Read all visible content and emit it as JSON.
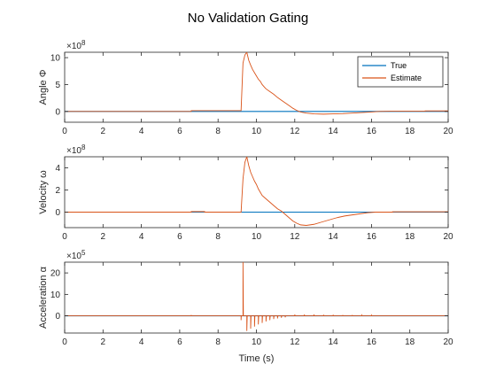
{
  "figure_title": "No Validation Gating",
  "colors": {
    "true": "#0072BD",
    "estimate": "#D95319",
    "axis": "#262626"
  },
  "chart_data": [
    {
      "type": "line",
      "ylabel": "Angle Φ",
      "exponent_base": "×10",
      "exponent_power": "8",
      "xlim": [
        0,
        20
      ],
      "ylim": [
        -2,
        11
      ],
      "x_ticks": [
        "0",
        "2",
        "4",
        "6",
        "8",
        "10",
        "12",
        "14",
        "16",
        "18",
        "20"
      ],
      "y_ticks": [
        {
          "value": 0,
          "label": "0"
        },
        {
          "value": 5,
          "label": "5"
        },
        {
          "value": 10,
          "label": "10"
        }
      ],
      "legend": {
        "position": "top-right",
        "entries": [
          "True",
          "Estimate"
        ]
      },
      "series": [
        {
          "name": "True",
          "color": "#0072BD",
          "points": [
            [
              0,
              0
            ],
            [
              20,
              0
            ]
          ]
        },
        {
          "name": "Estimate",
          "color": "#D95319",
          "points": [
            [
              0,
              0
            ],
            [
              6.6,
              0
            ],
            [
              6.6,
              0.15
            ],
            [
              8.8,
              0.15
            ],
            [
              9.2,
              0.15
            ],
            [
              9.3,
              9.0
            ],
            [
              9.4,
              10.5
            ],
            [
              9.5,
              11
            ],
            [
              9.6,
              9.5
            ],
            [
              9.7,
              8.6
            ],
            [
              9.8,
              7.8
            ],
            [
              9.9,
              7.2
            ],
            [
              10.0,
              6.6
            ],
            [
              10.1,
              6.0
            ],
            [
              10.2,
              5.6
            ],
            [
              10.3,
              5.0
            ],
            [
              10.4,
              4.6
            ],
            [
              10.5,
              4.2
            ],
            [
              10.7,
              3.7
            ],
            [
              10.9,
              3.2
            ],
            [
              11.1,
              2.6
            ],
            [
              11.3,
              2.1
            ],
            [
              11.5,
              1.6
            ],
            [
              11.7,
              1.1
            ],
            [
              11.9,
              0.6
            ],
            [
              12.1,
              0.2
            ],
            [
              12.3,
              -0.1
            ],
            [
              12.6,
              -0.3
            ],
            [
              13.0,
              -0.45
            ],
            [
              13.5,
              -0.5
            ],
            [
              14.0,
              -0.45
            ],
            [
              14.5,
              -0.4
            ],
            [
              15.0,
              -0.3
            ],
            [
              15.5,
              -0.2
            ],
            [
              16.0,
              -0.1
            ],
            [
              16.4,
              0
            ],
            [
              17.0,
              0.05
            ],
            [
              18.8,
              0.05
            ],
            [
              18.8,
              0.1
            ],
            [
              20,
              0.1
            ]
          ]
        }
      ]
    },
    {
      "type": "line",
      "ylabel": "Velocity ω",
      "exponent_base": "×10",
      "exponent_power": "8",
      "xlim": [
        0,
        20
      ],
      "ylim": [
        -1.4,
        5
      ],
      "x_ticks": [
        "0",
        "2",
        "4",
        "6",
        "8",
        "10",
        "12",
        "14",
        "16",
        "18",
        "20"
      ],
      "y_ticks": [
        {
          "value": 0,
          "label": "0"
        },
        {
          "value": 2,
          "label": "2"
        },
        {
          "value": 4,
          "label": "4"
        }
      ],
      "series": [
        {
          "name": "True",
          "color": "#0072BD",
          "points": [
            [
              0,
              0
            ],
            [
              20,
              0
            ]
          ]
        },
        {
          "name": "Estimate",
          "color": "#D95319",
          "points": [
            [
              0,
              0
            ],
            [
              6.6,
              0
            ],
            [
              6.6,
              0.05
            ],
            [
              7.3,
              0.05
            ],
            [
              7.3,
              0
            ],
            [
              9.0,
              0
            ],
            [
              9.2,
              0
            ],
            [
              9.3,
              3.0
            ],
            [
              9.4,
              4.5
            ],
            [
              9.5,
              5
            ],
            [
              9.6,
              4.2
            ],
            [
              9.7,
              3.6
            ],
            [
              9.8,
              3.2
            ],
            [
              9.9,
              2.8
            ],
            [
              10.0,
              2.5
            ],
            [
              10.1,
              2.1
            ],
            [
              10.2,
              1.8
            ],
            [
              10.3,
              1.5
            ],
            [
              10.5,
              1.2
            ],
            [
              10.7,
              0.9
            ],
            [
              10.9,
              0.6
            ],
            [
              11.1,
              0.3
            ],
            [
              11.3,
              0.1
            ],
            [
              11.5,
              -0.2
            ],
            [
              11.7,
              -0.5
            ],
            [
              11.9,
              -0.8
            ],
            [
              12.1,
              -1.0
            ],
            [
              12.3,
              -1.15
            ],
            [
              12.6,
              -1.2
            ],
            [
              13.0,
              -1.1
            ],
            [
              13.4,
              -0.9
            ],
            [
              13.8,
              -0.7
            ],
            [
              14.2,
              -0.5
            ],
            [
              14.6,
              -0.35
            ],
            [
              15.0,
              -0.25
            ],
            [
              15.4,
              -0.15
            ],
            [
              15.8,
              -0.05
            ],
            [
              16.2,
              0
            ],
            [
              17.1,
              0
            ],
            [
              17.1,
              0.03
            ],
            [
              20,
              0.03
            ]
          ]
        }
      ]
    },
    {
      "type": "line",
      "ylabel": "Acceleration α",
      "exponent_base": "×10",
      "exponent_power": "5",
      "xlim": [
        0,
        20
      ],
      "ylim": [
        -8,
        25
      ],
      "x_ticks": [
        "0",
        "2",
        "4",
        "6",
        "8",
        "10",
        "12",
        "14",
        "16",
        "18",
        "20"
      ],
      "xlabel": "Time (s)",
      "y_ticks": [
        {
          "value": 0,
          "label": "0"
        },
        {
          "value": 10,
          "label": "10"
        },
        {
          "value": 20,
          "label": "20"
        }
      ],
      "series": [
        {
          "name": "True",
          "color": "#0072BD",
          "points": [
            [
              0,
              0
            ],
            [
              20,
              0
            ]
          ]
        },
        {
          "name": "Estimate",
          "color": "#D95319",
          "points": [
            [
              0,
              0
            ],
            [
              6.6,
              0
            ],
            [
              6.6,
              0.4
            ],
            [
              6.61,
              0
            ],
            [
              9.2,
              0
            ],
            [
              9.2,
              -2
            ],
            [
              9.21,
              0
            ],
            [
              9.3,
              0
            ],
            [
              9.3,
              25
            ],
            [
              9.32,
              0
            ],
            [
              9.5,
              0
            ],
            [
              9.5,
              -7
            ],
            [
              9.52,
              0
            ],
            [
              9.7,
              0
            ],
            [
              9.7,
              -6
            ],
            [
              9.72,
              0
            ],
            [
              9.9,
              0
            ],
            [
              9.9,
              -5
            ],
            [
              9.92,
              0
            ],
            [
              10.1,
              0
            ],
            [
              10.1,
              -4
            ],
            [
              10.12,
              0
            ],
            [
              10.3,
              0
            ],
            [
              10.3,
              -3.3
            ],
            [
              10.32,
              0
            ],
            [
              10.5,
              0
            ],
            [
              10.5,
              -2.6
            ],
            [
              10.52,
              0
            ],
            [
              10.7,
              0
            ],
            [
              10.7,
              -2
            ],
            [
              10.72,
              0
            ],
            [
              10.9,
              0
            ],
            [
              10.9,
              -1.5
            ],
            [
              10.92,
              0
            ],
            [
              11.1,
              0
            ],
            [
              11.1,
              -1.2
            ],
            [
              11.12,
              0
            ],
            [
              11.3,
              0
            ],
            [
              11.3,
              -0.9
            ],
            [
              11.32,
              0
            ],
            [
              11.5,
              0
            ],
            [
              11.5,
              -0.7
            ],
            [
              11.52,
              0
            ],
            [
              12.0,
              0
            ],
            [
              12.0,
              0.6
            ],
            [
              12.02,
              0
            ],
            [
              12.5,
              0
            ],
            [
              12.5,
              0.6
            ],
            [
              12.52,
              0
            ],
            [
              13.0,
              0
            ],
            [
              13.0,
              0.6
            ],
            [
              13.02,
              0
            ],
            [
              13.5,
              0
            ],
            [
              13.5,
              0.5
            ],
            [
              13.52,
              0
            ],
            [
              14.0,
              0
            ],
            [
              14.0,
              0.5
            ],
            [
              14.02,
              0
            ],
            [
              14.5,
              0
            ],
            [
              14.5,
              0.4
            ],
            [
              14.52,
              0
            ],
            [
              15.0,
              0
            ],
            [
              15.0,
              0.4
            ],
            [
              15.02,
              0
            ],
            [
              15.5,
              0
            ],
            [
              15.5,
              0.3
            ],
            [
              15.52,
              0
            ],
            [
              16.0,
              0
            ],
            [
              16.0,
              0.3
            ],
            [
              16.02,
              0
            ],
            [
              20,
              0
            ]
          ]
        }
      ]
    }
  ]
}
